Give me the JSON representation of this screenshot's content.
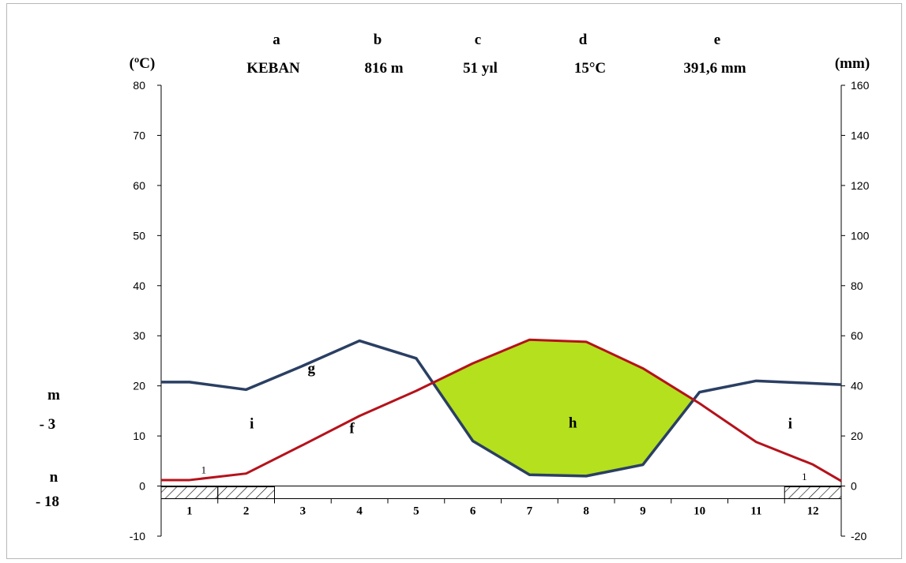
{
  "chart_data": {
    "type": "line",
    "station": {
      "letter_a": "a",
      "name": "KEBAN",
      "letter_b": "b",
      "altitude": "816 m",
      "letter_c": "c",
      "period": "51 yıl",
      "letter_d": "d",
      "mean_temp": "15°C",
      "letter_e": "e",
      "annual_precip": "391,6 mm"
    },
    "left_axis": {
      "unit": "(ºC)",
      "ylim": [
        -10,
        80
      ],
      "ticks": [
        "-10",
        "0",
        "10",
        "20",
        "30",
        "40",
        "50",
        "60",
        "70",
        "80"
      ]
    },
    "right_axis": {
      "unit": "(mm)",
      "ylim": [
        -20,
        160
      ],
      "ticks": [
        "-20",
        "0",
        "20",
        "40",
        "60",
        "80",
        "100",
        "120",
        "140",
        "160"
      ]
    },
    "months": [
      "1",
      "2",
      "3",
      "4",
      "5",
      "6",
      "7",
      "8",
      "9",
      "10",
      "11",
      "12"
    ],
    "series": [
      {
        "label": "f",
        "axis": "left",
        "color": "#b5121b",
        "x": [
          0.5,
          1,
          2,
          3,
          4,
          5,
          6,
          7,
          8,
          9,
          10,
          11,
          12,
          12.5
        ],
        "values": [
          1.2,
          1.2,
          2.5,
          8.2,
          14,
          19,
          24.5,
          29.2,
          28.8,
          23.5,
          16.5,
          8.8,
          4.3,
          1.0
        ]
      },
      {
        "label": "g",
        "axis": "right",
        "color": "#2a3f63",
        "x": [
          0.5,
          1,
          2,
          3,
          4,
          5,
          6,
          7,
          8,
          9,
          10,
          11,
          12,
          12.5
        ],
        "values": [
          41.5,
          41.5,
          38.5,
          48,
          58,
          51,
          18,
          4.5,
          4.0,
          8.5,
          37.5,
          42,
          41,
          40.5
        ]
      }
    ],
    "arid_area_label": "h",
    "humid_area_labels": [
      "i",
      "i"
    ],
    "arid_fill_color": "#b4e01e",
    "frost_months": [
      "1",
      "2",
      "12"
    ],
    "frost_counts": [
      "1",
      "1"
    ],
    "extremes": [
      {
        "letter": "m",
        "value": "- 3"
      },
      {
        "letter": "n",
        "value": "- 18"
      }
    ]
  }
}
